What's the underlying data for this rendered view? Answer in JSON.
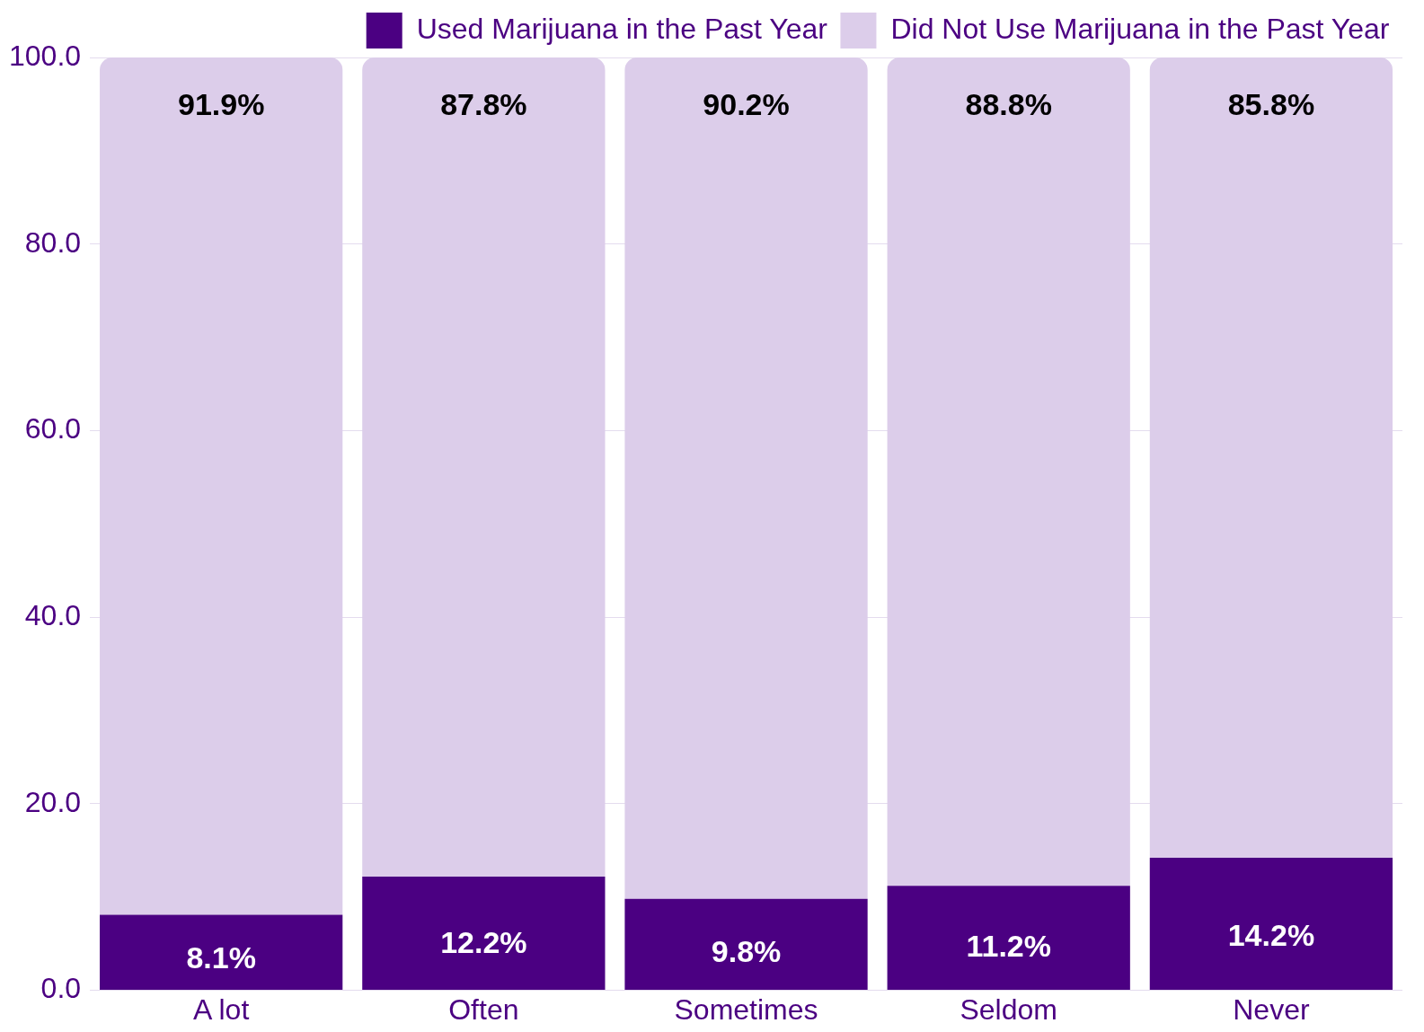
{
  "chart_data": {
    "type": "bar",
    "stacked": true,
    "categories": [
      "A lot",
      "Often",
      "Sometimes",
      "Seldom",
      "Never"
    ],
    "series": [
      {
        "name": "Used Marijuana in the Past Year",
        "color": "#4b0082",
        "values": [
          8.1,
          12.2,
          9.8,
          11.2,
          14.2
        ],
        "value_labels": [
          "8.1%",
          "12.2%",
          "9.8%",
          "11.2%",
          "14.2%"
        ]
      },
      {
        "name": "Did Not Use Marijuana in the Past Year",
        "color": "#dccdea",
        "values": [
          91.9,
          87.8,
          90.2,
          88.8,
          85.8
        ],
        "value_labels": [
          "91.9%",
          "87.8%",
          "90.2%",
          "88.8%",
          "85.8%"
        ]
      }
    ],
    "ylim": [
      0,
      100
    ],
    "yticks": [
      {
        "value": 0,
        "label": "0.0"
      },
      {
        "value": 20,
        "label": "20.0"
      },
      {
        "value": 40,
        "label": "40.0"
      },
      {
        "value": 60,
        "label": "60.0"
      },
      {
        "value": 80,
        "label": "80.0"
      },
      {
        "value": 100,
        "label": "100.0"
      }
    ],
    "grid": "y",
    "legend": "top"
  }
}
